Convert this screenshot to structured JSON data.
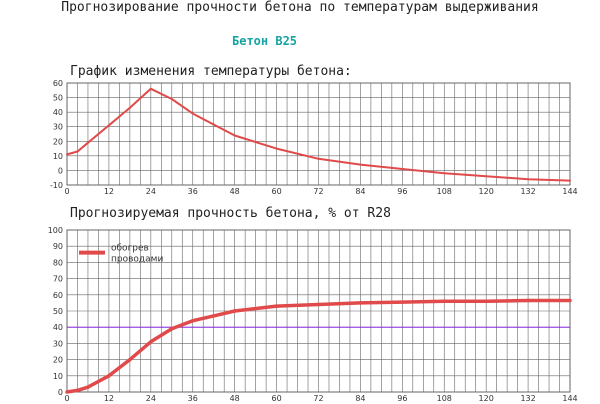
{
  "header": {
    "title": "Прогнозирование прочности бетона по температурам выдерживания",
    "concrete_grade": "Бетон B25"
  },
  "colors": {
    "series": "#e04a4a",
    "grid": "#666666",
    "reference_line": "#8a2be2",
    "grade_text": "#17a3a3"
  },
  "chart_data": [
    {
      "type": "line",
      "title": "График изменения температуры бетона:",
      "x_ticks": [
        0,
        12,
        24,
        36,
        48,
        60,
        72,
        84,
        96,
        108,
        120,
        132,
        144
      ],
      "y_ticks": [
        -10,
        0,
        10,
        20,
        30,
        40,
        50,
        60
      ],
      "xlim": [
        0,
        144
      ],
      "ylim": [
        -10,
        60
      ],
      "grid": true,
      "series": [
        {
          "x": [
            0,
            3,
            6,
            12,
            18,
            24,
            30,
            36,
            48,
            60,
            72,
            84,
            96,
            108,
            120,
            132,
            144
          ],
          "y": [
            11,
            13,
            19,
            31,
            43,
            56,
            49,
            39,
            24,
            15,
            8,
            4,
            1,
            -2,
            -4,
            -6,
            -7
          ]
        }
      ]
    },
    {
      "type": "line",
      "title": "Прогнозируемая прочность бетона, % от R28",
      "x_ticks": [
        0,
        12,
        24,
        36,
        48,
        60,
        72,
        84,
        96,
        108,
        120,
        132,
        144
      ],
      "y_ticks": [
        0,
        10,
        20,
        30,
        40,
        50,
        60,
        70,
        80,
        90,
        100
      ],
      "xlim": [
        0,
        144
      ],
      "ylim": [
        0,
        100
      ],
      "grid": true,
      "legend": {
        "position": "top-left"
      },
      "reference_line": {
        "y": 40
      },
      "series": [
        {
          "name": "обогрев проводами",
          "x": [
            0,
            3,
            6,
            12,
            18,
            24,
            30,
            36,
            42,
            48,
            60,
            72,
            84,
            96,
            108,
            120,
            132,
            144
          ],
          "y": [
            0,
            1,
            3,
            10,
            20,
            31,
            39,
            44,
            47,
            50,
            53,
            54,
            55,
            55.5,
            56,
            56,
            56.5,
            56.5
          ]
        }
      ]
    }
  ]
}
